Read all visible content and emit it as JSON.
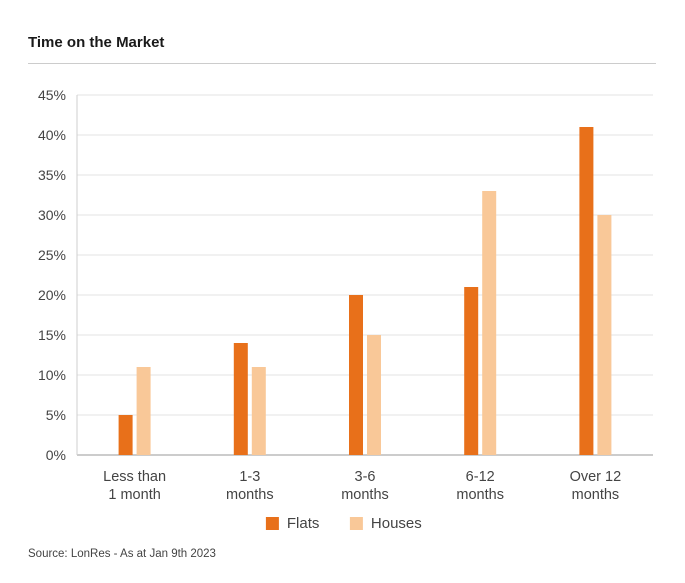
{
  "title": "Time on the Market",
  "source": "Source: LonRes - As at Jan 9th 2023",
  "chart_data": {
    "type": "bar",
    "title": "Time on the Market",
    "categories": [
      [
        "Less than",
        "1 month"
      ],
      [
        "1-3",
        "months"
      ],
      [
        "3-6",
        "months"
      ],
      [
        "6-12",
        "months"
      ],
      [
        "Over 12",
        "months"
      ]
    ],
    "series": [
      {
        "name": "Flats",
        "color": "#E8701A",
        "values": [
          5,
          14,
          20,
          21,
          41
        ]
      },
      {
        "name": "Houses",
        "color": "#F9C898",
        "values": [
          11,
          11,
          15,
          33,
          30
        ]
      }
    ],
    "ylim": [
      0,
      45
    ],
    "yticks": [
      0,
      5,
      10,
      15,
      20,
      25,
      30,
      35,
      40,
      45
    ],
    "ytick_suffix": "%",
    "grid": true,
    "legend_position": "bottom-center"
  }
}
